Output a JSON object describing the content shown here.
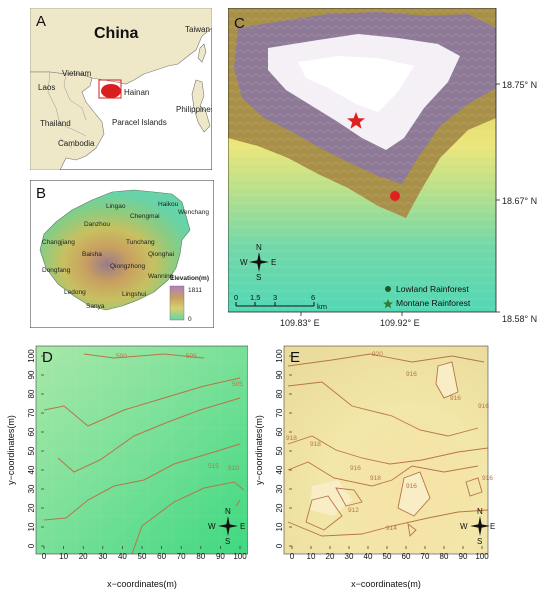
{
  "panels": {
    "A": {
      "letter": "A",
      "title": "China",
      "places": [
        "Vietnam",
        "Laos",
        "Thailand",
        "Cambodia",
        "Hainan",
        "Paracel Islands",
        "Taiwan",
        "Philippines"
      ]
    },
    "B": {
      "letter": "B",
      "places": [
        "Lingao",
        "Haikou",
        "Chengmai",
        "Wenchang",
        "Danzhou",
        "Changjiang",
        "Tunchang",
        "Qionghai",
        "Dongfang",
        "Baisha",
        "Qiongzhong",
        "Wanning",
        "Ledong",
        "Lingshui",
        "Sanya"
      ],
      "legend_title": "Elevation(m)",
      "legend_max": "1811",
      "legend_min": "0"
    },
    "C": {
      "letter": "C",
      "lat_labels": [
        "18.75° N",
        "18.67° N",
        "18.58° N"
      ],
      "lon_labels": [
        "109.83° E",
        "109.92° E"
      ],
      "scale_ticks": [
        "0",
        "1.5",
        "3",
        "6"
      ],
      "scale_unit": "km",
      "legend": [
        "Lowland Rainforest",
        "Montane Rainforest"
      ],
      "compass": {
        "n": "N",
        "s": "S",
        "e": "E",
        "w": "W"
      }
    },
    "D": {
      "letter": "D",
      "xlabel": "x−coordinates(m)",
      "ylabel": "y−coordinates(m)",
      "ticks": [
        "0",
        "10",
        "20",
        "30",
        "40",
        "50",
        "60",
        "70",
        "80",
        "90",
        "100"
      ],
      "contour_labels": [
        "500",
        "505",
        "505",
        "510",
        "515"
      ],
      "compass": {
        "n": "N",
        "s": "S",
        "e": "E",
        "w": "W"
      }
    },
    "E": {
      "letter": "E",
      "xlabel": "x−coordinates(m)",
      "ylabel": "y−coordinates(m)",
      "ticks": [
        "0",
        "10",
        "20",
        "30",
        "40",
        "50",
        "60",
        "70",
        "80",
        "90",
        "100"
      ],
      "contour_labels": [
        "920",
        "916",
        "916",
        "916",
        "918",
        "918",
        "916",
        "918",
        "916",
        "912",
        "914",
        "916"
      ],
      "compass": {
        "n": "N",
        "s": "S",
        "e": "E",
        "w": "W"
      }
    }
  },
  "colors": {
    "hainan_red": "#d81e1e",
    "star_red": "#e02020",
    "contour": "#b8744a",
    "lowland_dot": "#1e5a28",
    "montane_star": "#2e7d32"
  }
}
